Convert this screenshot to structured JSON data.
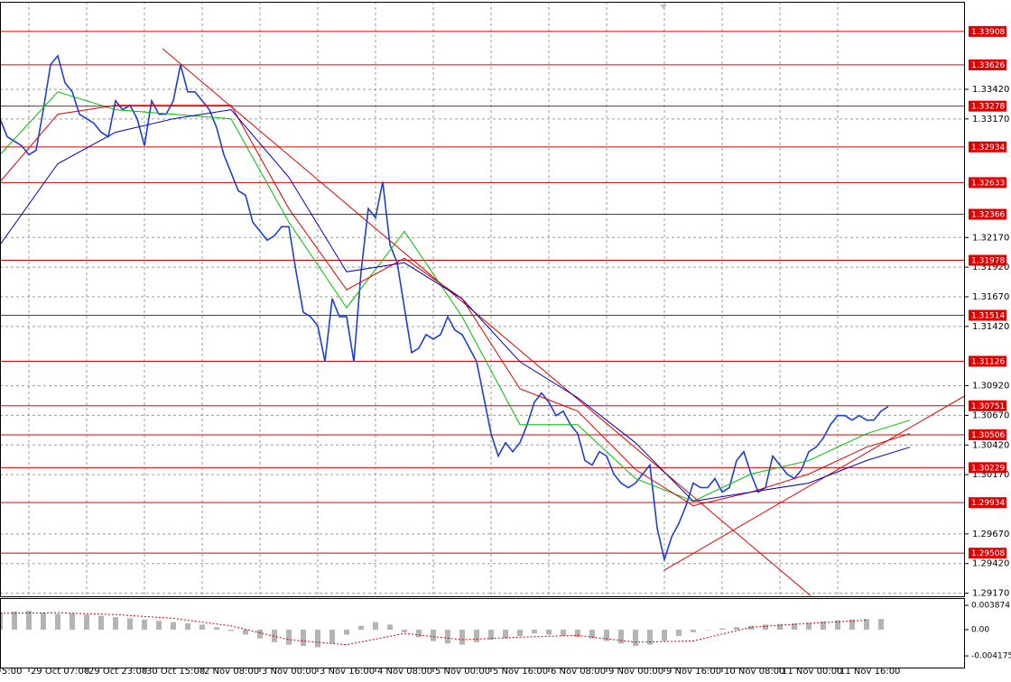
{
  "chart_data": [
    {
      "type": "line",
      "categories": [
        "5:00",
        null,
        null,
        null,
        "29 Oct 07:00",
        null,
        null,
        null,
        null,
        null,
        null,
        null,
        "29 Oct 23:00",
        null,
        null,
        null,
        null,
        null,
        null,
        null,
        "30 Oct 15:00",
        null,
        null,
        null,
        null,
        null,
        null,
        null,
        "2 Nov 08:00",
        null,
        null,
        null,
        null,
        null,
        null,
        null,
        "3 Nov 00:00",
        null,
        null,
        null,
        null,
        null,
        null,
        null,
        "3 Nov 16:00",
        null,
        null,
        null,
        null,
        null,
        null,
        null,
        "4 Nov 08:00",
        null,
        null,
        null,
        null,
        null,
        null,
        null,
        "5 Nov 00:00",
        null,
        null,
        null,
        null,
        null,
        null,
        null,
        "5 Nov 16:00",
        null,
        null,
        null,
        null,
        null,
        null,
        null,
        "6 Nov 08:00",
        null,
        null,
        null,
        null,
        null,
        null,
        null,
        "9 Nov 00:00",
        null,
        null,
        null,
        null,
        null,
        null,
        null,
        "9 Nov 16:00",
        null,
        null,
        null,
        null,
        null,
        null,
        null,
        "10 Nov 08:00",
        null,
        null,
        null,
        null,
        null,
        null,
        null,
        "11 Nov 00:00",
        null,
        null,
        null,
        null,
        null,
        null,
        null,
        "11 Nov 16:00",
        null,
        null,
        null,
        null,
        null,
        null,
        null
      ],
      "series": [
        {
          "color": "#1c3fd6",
          "values": [
            1.33171,
            1.3302,
            1.32982,
            1.32944,
            1.32868,
            1.32906,
            1.33248,
            1.33627,
            1.33703,
            1.33475,
            1.33399,
            1.3321,
            1.33171,
            1.33134,
            1.33058,
            1.3302,
            1.33323,
            1.33248,
            1.33285,
            1.33171,
            1.32944,
            1.33323,
            1.3321,
            1.3321,
            1.33323,
            1.33627,
            1.33399,
            1.33399,
            1.33323,
            1.33248,
            1.33096,
            1.32868,
            1.32716,
            1.32565,
            1.32527,
            1.32299,
            1.32223,
            1.32147,
            1.32185,
            1.32261,
            1.32261,
            1.31882,
            1.3154,
            1.31502,
            1.31426,
            1.31123,
            1.31654,
            1.31502,
            1.31502,
            1.31123,
            1.31882,
            1.32413,
            1.32337,
            1.3264,
            1.32109,
            1.31958,
            1.31578,
            1.31199,
            1.31237,
            1.31351,
            1.31313,
            1.31351,
            1.31502,
            1.31389,
            1.31351,
            1.31237,
            1.31123,
            1.3082,
            1.30516,
            1.30327,
            1.3044,
            1.30364,
            1.3044,
            1.30592,
            1.30782,
            1.30858,
            1.30782,
            1.30668,
            1.30706,
            1.30592,
            1.30516,
            1.30289,
            1.30251,
            1.30364,
            1.30327,
            1.30175,
            1.30099,
            1.30061,
            1.30099,
            1.30175,
            1.30251,
            1.2972,
            1.29454,
            1.29644,
            1.29758,
            1.29909,
            1.30099,
            1.30061,
            1.30061,
            1.30137,
            1.30023,
            1.30061,
            1.30289,
            1.30364,
            1.30175,
            1.30023,
            1.30061,
            1.30327,
            1.30251,
            1.30175,
            1.30137,
            1.30213,
            1.30364,
            1.30402,
            1.30478,
            1.30592,
            1.30668,
            1.30668,
            1.3063,
            1.30668,
            1.3063,
            1.3063,
            1.30706,
            1.30744
          ]
        },
        {
          "color": "#00c000",
          "x": [
            0,
            8,
            16,
            24,
            32,
            40,
            48,
            56,
            64,
            72,
            80,
            88,
            96,
            104,
            112,
            120,
            126
          ],
          "values": [
            1.32868,
            1.33399,
            1.33248,
            1.3321,
            1.33171,
            1.32299,
            1.31578,
            1.32223,
            1.31502,
            1.30592,
            1.30592,
            1.30137,
            1.29946,
            1.30175,
            1.30289,
            1.30516,
            1.3063
          ]
        },
        {
          "color": "#e00000",
          "x": [
            0,
            8,
            16,
            24,
            32,
            40,
            48,
            56,
            64,
            72,
            80,
            88,
            96,
            104,
            112,
            120,
            126
          ],
          "values": [
            1.3264,
            1.3321,
            1.33285,
            1.33285,
            1.33285,
            1.32413,
            1.31729,
            1.31995,
            1.31654,
            1.30894,
            1.30706,
            1.30213,
            1.29908,
            1.30023,
            1.30175,
            1.30402,
            1.30516
          ]
        },
        {
          "color": "#0000c0",
          "x": [
            0,
            8,
            16,
            24,
            32,
            40,
            48,
            56,
            64,
            72,
            80,
            88,
            96,
            104,
            112,
            120,
            126
          ],
          "values": [
            1.32109,
            1.32792,
            1.33058,
            1.33171,
            1.33248,
            1.32678,
            1.31881,
            1.31957,
            1.31654,
            1.31122,
            1.30819,
            1.30439,
            1.29946,
            1.30023,
            1.30099,
            1.30289,
            1.30402
          ]
        }
      ],
      "trendlines": [
        {
          "color": "#e00000",
          "x": [
            22.5,
            112.25
          ],
          "values": [
            1.33763,
            1.29149
          ]
        },
        {
          "color": "#e00000",
          "x": [
            91.9,
            140
          ],
          "values": [
            1.29361,
            1.31061
          ]
        }
      ],
      "levels": {
        "color": "#e00000",
        "values": [
          1.33908,
          1.33626,
          1.33278,
          1.32934,
          1.32633,
          1.32366,
          1.31978,
          1.31514,
          1.31126,
          1.30751,
          1.30506,
          1.30229,
          1.29934,
          1.29508
        ]
      },
      "xlim": [
        0,
        133.5
      ],
      "ylim": [
        1.29144,
        1.34158
      ],
      "yticks": [
        {
          "value": 1.3342,
          "label": "1.33420"
        },
        {
          "value": 1.3317,
          "label": "1.33170"
        },
        {
          "value": 1.3217,
          "label": "1.32170"
        },
        {
          "value": 1.3192,
          "label": "1.31920"
        },
        {
          "value": 1.3167,
          "label": "1.31670"
        },
        {
          "value": 1.3142,
          "label": "1.31420"
        },
        {
          "value": 1.3092,
          "label": "1.30920"
        },
        {
          "value": 1.3067,
          "label": "1.30670"
        },
        {
          "value": 1.3042,
          "label": "1.30420"
        },
        {
          "value": 1.3017,
          "label": "1.30170"
        },
        {
          "value": 1.2967,
          "label": "1.29670"
        },
        {
          "value": 1.2942,
          "label": "1.29420"
        },
        {
          "value": 1.2917,
          "label": "1.29170"
        }
      ],
      "grid": true
    },
    {
      "type": "bar",
      "x": [
        0,
        2,
        4,
        6,
        8,
        10,
        12,
        14,
        16,
        18,
        20,
        22,
        24,
        26,
        28,
        30,
        32,
        34,
        36,
        38,
        40,
        42,
        44,
        46,
        48,
        50,
        52,
        54,
        56,
        58,
        60,
        62,
        64,
        66,
        68,
        70,
        72,
        74,
        76,
        78,
        80,
        82,
        84,
        86,
        88,
        90,
        92,
        94,
        96,
        98,
        100,
        102,
        104,
        106,
        108,
        110,
        112,
        114,
        116,
        118,
        120,
        122
      ],
      "values": [
        0.0028,
        0.0029,
        0.003,
        0.0027,
        0.0025,
        0.0026,
        0.0024,
        0.0022,
        0.002,
        0.0018,
        0.0016,
        0.0014,
        0.0012,
        0.001,
        0.0008,
        0.0004,
        -0.0002,
        -0.0008,
        -0.0014,
        -0.002,
        -0.0024,
        -0.0026,
        -0.0028,
        -0.0022,
        -0.0008,
        0.0006,
        0.0012,
        0.0008,
        -0.0004,
        -0.0012,
        -0.0018,
        -0.0022,
        -0.0024,
        -0.002,
        -0.0016,
        -0.0014,
        -0.001,
        -0.0006,
        -0.0008,
        -0.001,
        -0.0012,
        -0.0014,
        -0.0018,
        -0.0022,
        -0.0026,
        -0.0024,
        -0.0018,
        -0.001,
        -0.0004,
        0,
        0.0002,
        0.0004,
        0.0006,
        0.0008,
        0.0009,
        0.001,
        0.0011,
        0.0013,
        0.0015,
        0.0016,
        0.0017,
        0.0017
      ],
      "color": "#b4b4b4",
      "signal": {
        "color": "#d00000",
        "x": [
          0,
          8,
          16,
          24,
          32,
          40,
          48,
          56,
          64,
          72,
          80,
          88,
          96,
          104,
          112,
          120
        ],
        "values": [
          0.0026,
          0.0027,
          0.0024,
          0.0018,
          0.0006,
          -0.0016,
          -0.0024,
          -0.0006,
          -0.0016,
          -0.0012,
          -0.0009,
          -0.002,
          -0.0018,
          0.0004,
          0.001,
          0.0015
        ]
      },
      "xlim": [
        0,
        133.5
      ],
      "ylim": [
        -0.00603,
        0.00502
      ],
      "yticks": [
        0.003874,
        {
          "value": 0,
          "label": "0.00"
        },
        -0.004175
      ]
    }
  ]
}
